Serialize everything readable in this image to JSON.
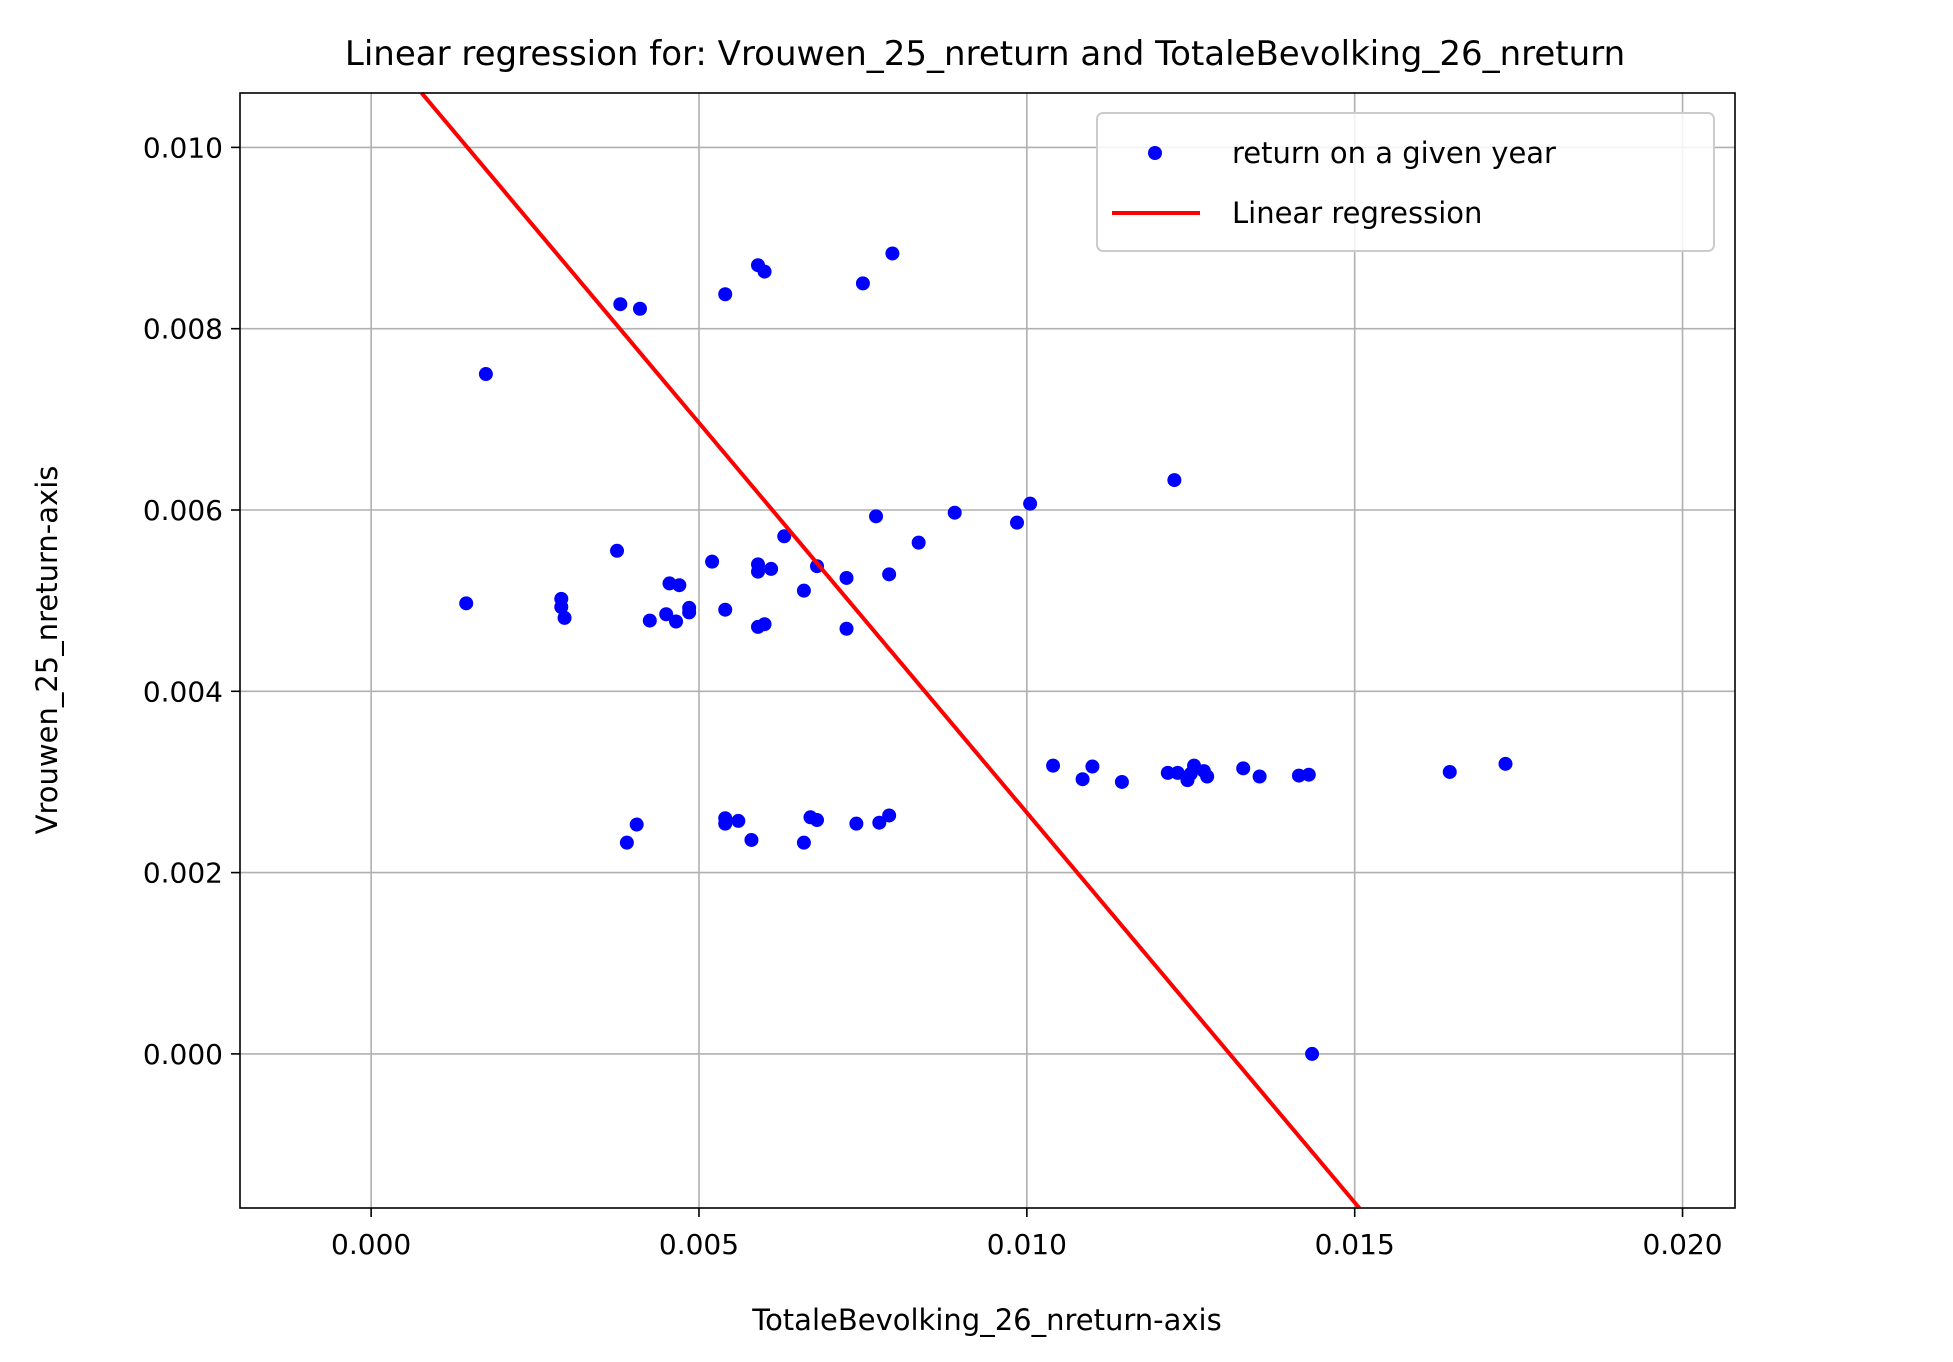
{
  "chart_data": {
    "type": "scatter",
    "title": "Linear regression for: Vrouwen_25_nreturn and TotaleBevolking_26_nreturn",
    "xlabel": "TotaleBevolking_26_nreturn-axis",
    "ylabel": "Vrouwen_25_nreturn-axis",
    "xlim": [
      -0.002,
      0.0208
    ],
    "ylim": [
      -0.0017,
      0.0106
    ],
    "xticks": [
      0.0,
      0.005,
      0.01,
      0.015,
      0.02
    ],
    "xtick_labels": [
      "0.000",
      "0.005",
      "0.010",
      "0.015",
      "0.020"
    ],
    "yticks": [
      0.0,
      0.002,
      0.004,
      0.006,
      0.008,
      0.01
    ],
    "ytick_labels": [
      "0.000",
      "0.002",
      "0.004",
      "0.006",
      "0.008",
      "0.010"
    ],
    "grid": true,
    "legend_position": "top-right",
    "series": [
      {
        "name": "return on a given year",
        "kind": "scatter",
        "color": "#0000ff",
        "points": [
          [
            0.00145,
            0.00497
          ],
          [
            0.00175,
            0.0075
          ],
          [
            0.0029,
            0.00502
          ],
          [
            0.0029,
            0.00493
          ],
          [
            0.00295,
            0.00481
          ],
          [
            0.00375,
            0.00555
          ],
          [
            0.0038,
            0.00827
          ],
          [
            0.0041,
            0.00822
          ],
          [
            0.00425,
            0.00478
          ],
          [
            0.0045,
            0.00485
          ],
          [
            0.00455,
            0.00519
          ],
          [
            0.00465,
            0.00477
          ],
          [
            0.0047,
            0.00517
          ],
          [
            0.00485,
            0.00487
          ],
          [
            0.00485,
            0.00492
          ],
          [
            0.0052,
            0.00543
          ],
          [
            0.0054,
            0.00838
          ],
          [
            0.0054,
            0.0049
          ],
          [
            0.0059,
            0.0087
          ],
          [
            0.006,
            0.00863
          ],
          [
            0.0059,
            0.0054
          ],
          [
            0.0059,
            0.00532
          ],
          [
            0.0061,
            0.00535
          ],
          [
            0.0059,
            0.00471
          ],
          [
            0.006,
            0.00474
          ],
          [
            0.0063,
            0.00571
          ],
          [
            0.0066,
            0.00511
          ],
          [
            0.0068,
            0.00538
          ],
          [
            0.00725,
            0.00525
          ],
          [
            0.00725,
            0.00469
          ],
          [
            0.0075,
            0.0085
          ],
          [
            0.0077,
            0.00593
          ],
          [
            0.00795,
            0.00883
          ],
          [
            0.0079,
            0.00529
          ],
          [
            0.00835,
            0.00564
          ],
          [
            0.0089,
            0.00597
          ],
          [
            0.00985,
            0.00586
          ],
          [
            0.01005,
            0.00607
          ],
          [
            0.01225,
            0.00633
          ],
          [
            0.0039,
            0.00233
          ],
          [
            0.00405,
            0.00253
          ],
          [
            0.0054,
            0.0026
          ],
          [
            0.0054,
            0.00254
          ],
          [
            0.0056,
            0.00257
          ],
          [
            0.0058,
            0.00236
          ],
          [
            0.0066,
            0.00233
          ],
          [
            0.0067,
            0.00261
          ],
          [
            0.0068,
            0.00258
          ],
          [
            0.0074,
            0.00254
          ],
          [
            0.00775,
            0.00255
          ],
          [
            0.0079,
            0.00263
          ],
          [
            0.0104,
            0.00318
          ],
          [
            0.01085,
            0.00303
          ],
          [
            0.011,
            0.00317
          ],
          [
            0.01145,
            0.003
          ],
          [
            0.01215,
            0.0031
          ],
          [
            0.0123,
            0.0031
          ],
          [
            0.01245,
            0.00302
          ],
          [
            0.0125,
            0.00309
          ],
          [
            0.01255,
            0.00318
          ],
          [
            0.0127,
            0.00312
          ],
          [
            0.01275,
            0.00306
          ],
          [
            0.0133,
            0.00315
          ],
          [
            0.01355,
            0.00306
          ],
          [
            0.01415,
            0.00307
          ],
          [
            0.0143,
            0.00308
          ],
          [
            0.01645,
            0.00311
          ],
          [
            0.0173,
            0.0032
          ],
          [
            0.01435,
            0.0
          ]
        ]
      },
      {
        "name": "Linear regression",
        "kind": "line",
        "color": "#ff0000",
        "points": [
          [
            0.00077,
            0.0106
          ],
          [
            0.01507,
            -0.0017
          ]
        ]
      }
    ]
  }
}
